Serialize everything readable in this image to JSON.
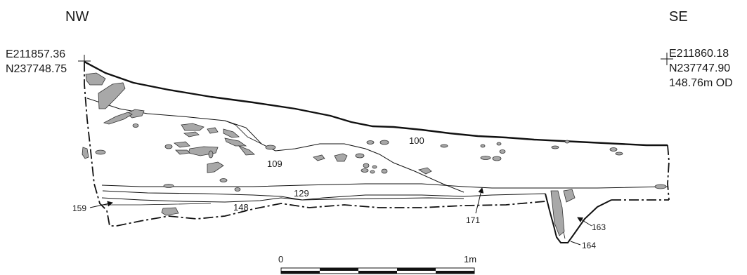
{
  "orientation": {
    "left": "NW",
    "right": "SE"
  },
  "datums": {
    "left_easting": "E211857.36",
    "left_northing": "N237748.75",
    "right_easting": "E211860.18",
    "right_northing": "N237747.90",
    "right_level": "148.76m OD"
  },
  "contexts": {
    "c100": "100",
    "c109": "109",
    "c129": "129",
    "c148": "148",
    "c159": "159",
    "c163": "163",
    "c164": "164",
    "c171": "171"
  },
  "scale_bar": {
    "start_label": "0",
    "end_label": "1m",
    "segments": 5
  },
  "colors": {
    "line": "#111111",
    "stone_fill": "#a8a8a8",
    "stone_stroke": "#333333"
  }
}
